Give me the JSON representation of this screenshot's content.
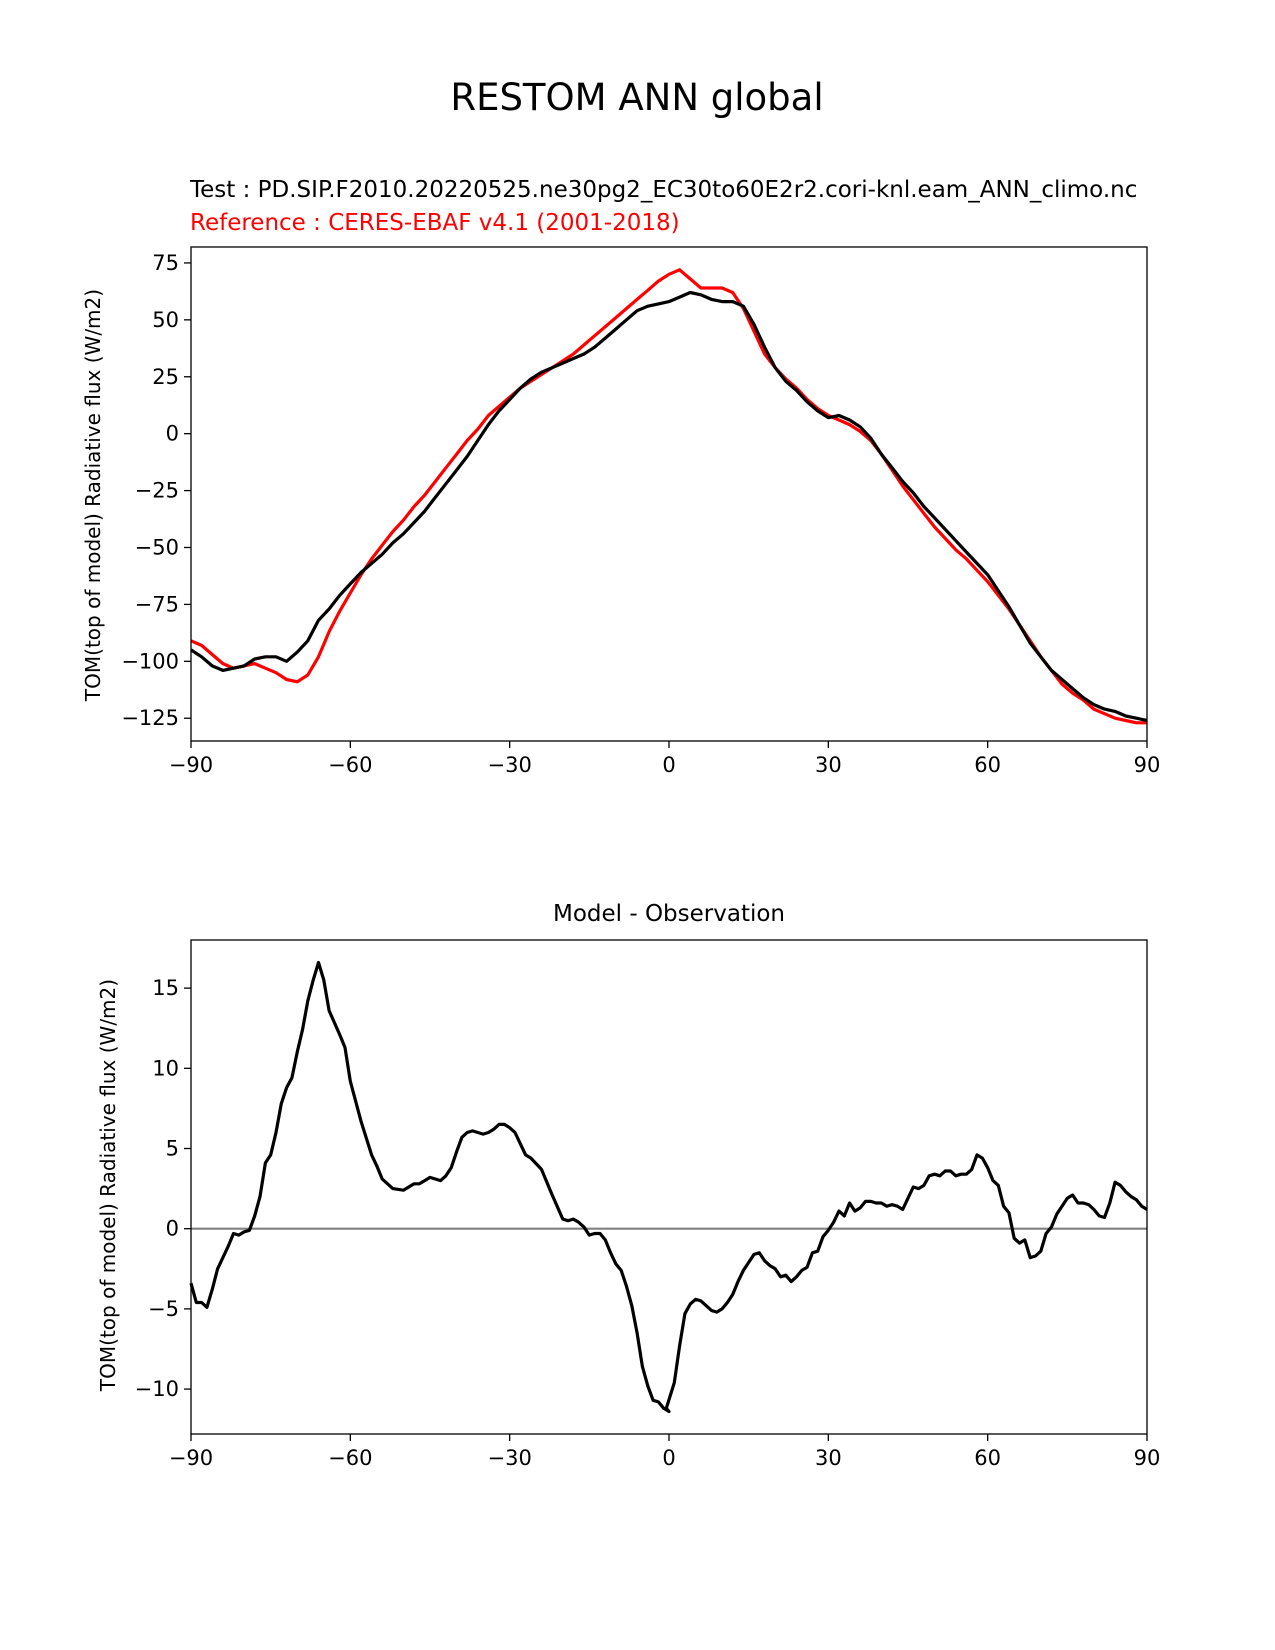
{
  "figure": {
    "title": "RESTOM ANN global",
    "colors": {
      "test": "#000000",
      "reference": "#ff0000",
      "zero_line": "#808080"
    }
  },
  "chart_data": [
    {
      "type": "line",
      "title_test": "Test : PD.SIP.F2010.20220525.ne30pg2_EC30to60E2r2.cori-knl.eam_ANN_climo.nc",
      "title_reference": "Reference : CERES-EBAF v4.1 (2001-2018)",
      "xlabel": "",
      "ylabel": "TOM(top of model) Radiative flux (W/m2)",
      "xlim": [
        -90,
        90
      ],
      "ylim": [
        -135,
        82
      ],
      "xticks": [
        -90,
        -60,
        -30,
        0,
        30,
        60,
        90
      ],
      "yticks": [
        -125,
        -100,
        -75,
        -50,
        -25,
        0,
        25,
        50,
        75
      ],
      "grid": false,
      "series": [
        {
          "color": "#000000",
          "x": [
            -90,
            -88,
            -86,
            -84,
            -82,
            -80,
            -78,
            -76,
            -74,
            -72,
            -70,
            -68,
            -66,
            -64,
            -62,
            -60,
            -58,
            -56,
            -54,
            -52,
            -50,
            -48,
            -46,
            -44,
            -42,
            -40,
            -38,
            -36,
            -34,
            -32,
            -30,
            -28,
            -26,
            -24,
            -22,
            -20,
            -18,
            -16,
            -14,
            -12,
            -10,
            -8,
            -6,
            -4,
            -2,
            0,
            2,
            4,
            6,
            8,
            10,
            12,
            14,
            16,
            18,
            20,
            22,
            24,
            26,
            28,
            30,
            32,
            34,
            36,
            38,
            40,
            42,
            44,
            46,
            48,
            50,
            52,
            54,
            56,
            58,
            60,
            62,
            64,
            66,
            68,
            70,
            72,
            74,
            76,
            78,
            80,
            82,
            84,
            86,
            88,
            90
          ],
          "y": [
            -95,
            -98,
            -102,
            -104,
            -103,
            -102,
            -99,
            -98,
            -98,
            -100,
            -96,
            -91,
            -82,
            -77,
            -71,
            -66,
            -61,
            -57,
            -53,
            -48,
            -44,
            -39,
            -34,
            -28,
            -22,
            -16,
            -10,
            -3,
            4,
            10,
            15,
            20,
            24,
            27,
            29,
            31,
            33,
            35,
            38,
            42,
            46,
            50,
            54,
            56,
            57,
            58,
            60,
            62,
            61,
            59,
            58,
            58,
            56,
            48,
            38,
            29,
            23,
            19,
            14,
            10,
            7,
            8,
            6,
            3,
            -2,
            -9,
            -15,
            -21,
            -26,
            -32,
            -37,
            -42,
            -47,
            -52,
            -57,
            -62,
            -69,
            -76,
            -84,
            -92,
            -98,
            -104,
            -108,
            -112,
            -116,
            -119,
            -121,
            -122,
            -124,
            -125,
            -126
          ]
        },
        {
          "color": "#ff0000",
          "x": [
            -90,
            -88,
            -86,
            -84,
            -82,
            -80,
            -78,
            -76,
            -74,
            -72,
            -70,
            -68,
            -66,
            -64,
            -62,
            -60,
            -58,
            -56,
            -54,
            -52,
            -50,
            -48,
            -46,
            -44,
            -42,
            -40,
            -38,
            -36,
            -34,
            -32,
            -30,
            -28,
            -26,
            -24,
            -22,
            -20,
            -18,
            -16,
            -14,
            -12,
            -10,
            -8,
            -6,
            -4,
            -2,
            0,
            2,
            4,
            6,
            8,
            10,
            12,
            14,
            16,
            18,
            20,
            22,
            24,
            26,
            28,
            30,
            32,
            34,
            36,
            38,
            40,
            42,
            44,
            46,
            48,
            50,
            52,
            54,
            56,
            58,
            60,
            62,
            64,
            66,
            68,
            70,
            72,
            74,
            76,
            78,
            80,
            82,
            84,
            86,
            88,
            90
          ],
          "y": [
            -91,
            -93,
            -97,
            -101,
            -103,
            -102,
            -101,
            -103,
            -105,
            -108,
            -109,
            -106,
            -98,
            -87,
            -78,
            -70,
            -62,
            -55,
            -49,
            -43,
            -38,
            -32,
            -27,
            -21,
            -15,
            -9,
            -3,
            2,
            8,
            12,
            16,
            20,
            23,
            26,
            29,
            32,
            35,
            39,
            43,
            47,
            51,
            55,
            59,
            63,
            67,
            70,
            72,
            68,
            64,
            64,
            64,
            62,
            55,
            45,
            35,
            29,
            24,
            20,
            15,
            11,
            8,
            6,
            4,
            1,
            -3,
            -9,
            -16,
            -23,
            -29,
            -35,
            -41,
            -46,
            -51,
            -55,
            -60,
            -65,
            -71,
            -77,
            -84,
            -91,
            -98,
            -104,
            -110,
            -114,
            -117,
            -121,
            -123,
            -125,
            -126,
            -127,
            -127
          ]
        }
      ]
    },
    {
      "type": "line",
      "title": "Model - Observation",
      "xlabel": "",
      "ylabel": "TOM(top of model) Radiative flux (W/m2)",
      "xlim": [
        -90,
        90
      ],
      "ylim": [
        -12.8,
        18
      ],
      "xticks": [
        -90,
        -60,
        -30,
        0,
        30,
        60,
        90
      ],
      "yticks": [
        -10,
        -5,
        0,
        5,
        10,
        15
      ],
      "grid": false,
      "zero_line": 0,
      "series": [
        {
          "color": "#000000",
          "x": [
            -90,
            -89,
            -88,
            -87,
            -86,
            -85,
            -84,
            -83,
            -82,
            -81,
            -80,
            -79,
            -78,
            -77,
            -76,
            -75,
            -74,
            -73,
            -72,
            -71,
            -70,
            -69,
            -68,
            -67,
            -66,
            -65,
            -64,
            -62,
            -61,
            -60,
            -58,
            -56,
            -55,
            -54,
            -52,
            -50,
            -48,
            -47,
            -46,
            -45,
            -44,
            -43,
            -42,
            -41,
            -40,
            -39,
            -38,
            -37,
            -36,
            -35,
            -34,
            -33,
            -32,
            -31,
            -30,
            -29,
            -28,
            -27,
            -26,
            -24,
            -22,
            -20,
            -19,
            -18,
            -17,
            -16,
            -15,
            -14,
            -13,
            -12,
            -11,
            -10,
            -9,
            -8,
            -7,
            -6,
            -5,
            -4,
            -3,
            -2,
            -1,
            0,
            -0.5,
            1,
            2,
            3,
            4,
            5,
            6,
            7,
            8,
            9,
            10,
            11,
            12,
            13,
            14,
            15,
            16,
            17,
            18,
            19,
            20,
            21,
            22,
            23,
            24,
            25,
            26,
            27,
            28,
            29,
            30,
            31,
            32,
            33,
            34,
            35,
            36,
            37,
            38,
            39,
            40,
            41,
            42,
            43,
            44,
            45,
            46,
            47,
            48,
            49,
            50,
            51,
            52,
            53,
            54,
            55,
            56,
            57,
            58,
            59,
            60,
            61,
            62,
            63,
            64,
            65,
            66,
            67,
            68,
            69,
            70,
            71,
            72,
            73,
            74,
            75,
            76,
            77,
            78,
            79,
            80,
            81,
            82,
            83,
            84,
            85,
            86,
            87,
            88,
            89,
            90
          ],
          "y": [
            -3.4,
            -4.6,
            -4.6,
            -4.9,
            -3.8,
            -2.5,
            -1.8,
            -1.1,
            -0.3,
            -0.4,
            -0.2,
            -0.1,
            0.8,
            2.0,
            4.1,
            4.6,
            6.0,
            7.8,
            8.8,
            9.4,
            11.0,
            12.4,
            14.2,
            15.5,
            16.6,
            15.5,
            13.6,
            12.1,
            11.3,
            9.2,
            6.7,
            4.6,
            3.9,
            3.1,
            2.5,
            2.4,
            2.8,
            2.8,
            3.0,
            3.2,
            3.1,
            3.0,
            3.3,
            3.8,
            4.8,
            5.7,
            6.0,
            6.1,
            6.0,
            5.9,
            6.0,
            6.2,
            6.5,
            6.5,
            6.3,
            6.0,
            5.3,
            4.6,
            4.4,
            3.7,
            2.1,
            0.6,
            0.5,
            0.6,
            0.4,
            0.1,
            -0.4,
            -0.3,
            -0.3,
            -0.7,
            -1.5,
            -2.2,
            -2.6,
            -3.6,
            -4.8,
            -6.5,
            -8.6,
            -9.8,
            -10.7,
            -10.8,
            -11.2,
            -11.4,
            -11.2,
            -9.6,
            -7.3,
            -5.3,
            -4.7,
            -4.4,
            -4.5,
            -4.8,
            -5.1,
            -5.2,
            -5.0,
            -4.6,
            -4.1,
            -3.3,
            -2.6,
            -2.1,
            -1.6,
            -1.5,
            -2.0,
            -2.3,
            -2.5,
            -3.0,
            -2.9,
            -3.3,
            -3.0,
            -2.6,
            -2.4,
            -1.5,
            -1.4,
            -0.5,
            -0.1,
            0.4,
            1.1,
            0.8,
            1.6,
            1.1,
            1.3,
            1.7,
            1.7,
            1.6,
            1.6,
            1.4,
            1.5,
            1.4,
            1.2,
            1.9,
            2.6,
            2.5,
            2.7,
            3.3,
            3.4,
            3.3,
            3.6,
            3.6,
            3.3,
            3.4,
            3.4,
            3.7,
            4.6,
            4.4,
            3.8,
            3.0,
            2.7,
            1.4,
            1.0,
            -0.6,
            -0.9,
            -0.7,
            -1.8,
            -1.7,
            -1.4,
            -0.3,
            0.1,
            0.9,
            1.4,
            1.9,
            2.1,
            1.6,
            1.6,
            1.5,
            1.2,
            0.8,
            0.7,
            1.6,
            2.9,
            2.7,
            2.3,
            2.0,
            1.8,
            1.4,
            1.2
          ]
        }
      ]
    }
  ]
}
